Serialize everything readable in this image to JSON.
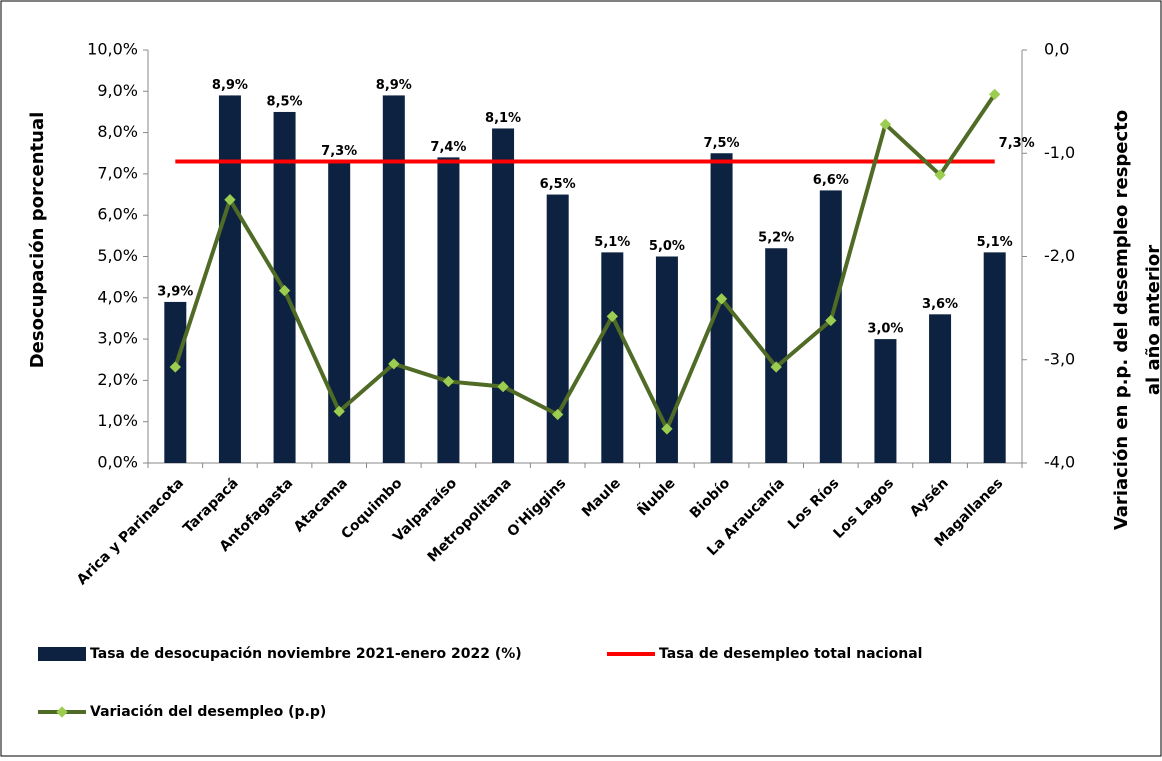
{
  "chart_data": {
    "type": "bar",
    "categories": [
      "Arica y Parinacota",
      "Tarapacá",
      "Antofagasta",
      "Atacama",
      "Coquimbo",
      "Valparaíso",
      "Metropolitana",
      "O'Higgins",
      "Maule",
      "Ñuble",
      "Biobío",
      "La Araucanía",
      "Los Ríos",
      "Los Lagos",
      "Aysén",
      "Magallanes"
    ],
    "series": [
      {
        "name": "Tasa de desocupación noviembre 2021-enero 2022 (%)",
        "type": "bar",
        "color": "#0d2240",
        "values": [
          3.9,
          8.9,
          8.5,
          7.3,
          8.9,
          7.4,
          8.1,
          6.5,
          5.1,
          5.0,
          7.5,
          5.2,
          6.6,
          3.0,
          3.6,
          5.1
        ],
        "value_labels": [
          "3,9%",
          "8,9%",
          "8,5%",
          "7,3%",
          "8,9%",
          "7,4%",
          "8,1%",
          "6,5%",
          "5,1%",
          "5,0%",
          "7,5%",
          "5,2%",
          "6,6%",
          "3,0%",
          "3,6%",
          "5,1%"
        ]
      },
      {
        "name": "Tasa de desempleo total nacional",
        "type": "line",
        "color": "#ff0000",
        "values": [
          7.3,
          7.3,
          7.3,
          7.3,
          7.3,
          7.3,
          7.3,
          7.3,
          7.3,
          7.3,
          7.3,
          7.3,
          7.3,
          7.3,
          7.3,
          7.3
        ],
        "value_labels": [
          null,
          null,
          null,
          null,
          null,
          null,
          null,
          null,
          null,
          null,
          null,
          null,
          null,
          null,
          null,
          "7,3%"
        ]
      },
      {
        "name": "Variación del desempleo  (p.p)",
        "type": "line",
        "axis": "y2",
        "color": "#4f6b26",
        "marker_color": "#9acd50",
        "values": [
          -3.07,
          -1.45,
          -2.33,
          -3.5,
          -3.04,
          -3.21,
          -3.26,
          -3.53,
          -2.58,
          -3.67,
          -2.41,
          -3.07,
          -2.62,
          -0.72,
          -1.21,
          -0.43
        ]
      }
    ],
    "ylabel": "Desocupación   porcentual",
    "y2label": [
      "Variación  en p.p. del desempleo respecto",
      "al año anterior"
    ],
    "ylim": [
      0,
      10
    ],
    "yticks": [
      {
        "value": 0,
        "label": "0,0%"
      },
      {
        "value": 1,
        "label": "1,0%"
      },
      {
        "value": 2,
        "label": "2,0%"
      },
      {
        "value": 3,
        "label": "3,0%"
      },
      {
        "value": 4,
        "label": "4,0%"
      },
      {
        "value": 5,
        "label": "5,0%"
      },
      {
        "value": 6,
        "label": "6,0%"
      },
      {
        "value": 7,
        "label": "7,0%"
      },
      {
        "value": 8,
        "label": "8,0%"
      },
      {
        "value": 9,
        "label": "9,0%"
      },
      {
        "value": 10,
        "label": "10,0%"
      }
    ],
    "y2lim": [
      -4,
      0
    ],
    "y2ticks": [
      {
        "value": -4,
        "label": "-4,0"
      },
      {
        "value": -3,
        "label": "-3,0"
      },
      {
        "value": -2,
        "label": "-2,0"
      },
      {
        "value": -1,
        "label": "-1,0"
      },
      {
        "value": 0,
        "label": "0,0"
      }
    ],
    "grid": false
  }
}
